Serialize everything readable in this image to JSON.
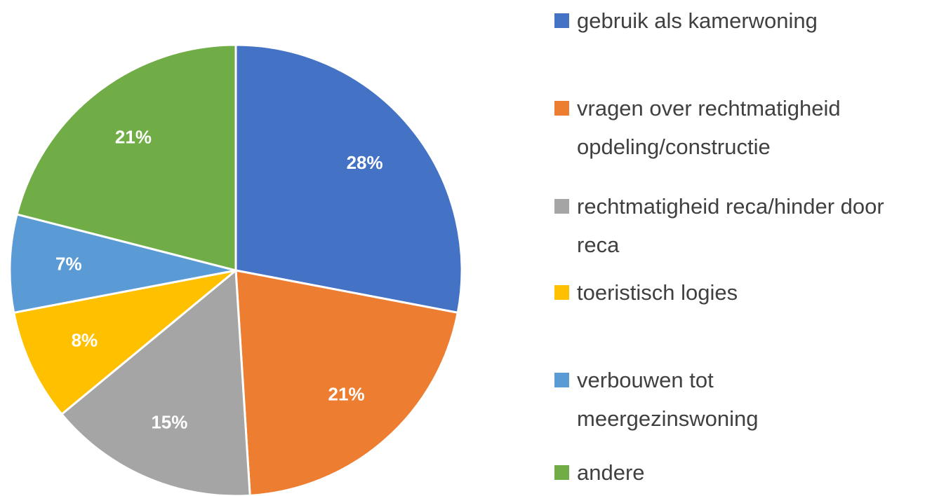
{
  "chart_data": {
    "type": "pie",
    "categories": [
      "gebruik als kamerwoning",
      "vragen over rechtmatigheid opdeling/constructie",
      "rechtmatigheid reca/hinder door reca",
      "toeristisch logies",
      "verbouwen tot meergezinswoning",
      "andere"
    ],
    "values": [
      28,
      21,
      15,
      8,
      7,
      21
    ],
    "value_labels": [
      "28%",
      "21%",
      "15%",
      "8%",
      "7%",
      "21%"
    ],
    "colors": [
      "#4472c4",
      "#ed7d31",
      "#a5a5a5",
      "#ffc000",
      "#5b9bd5",
      "#70ad47"
    ],
    "legend": "right"
  }
}
